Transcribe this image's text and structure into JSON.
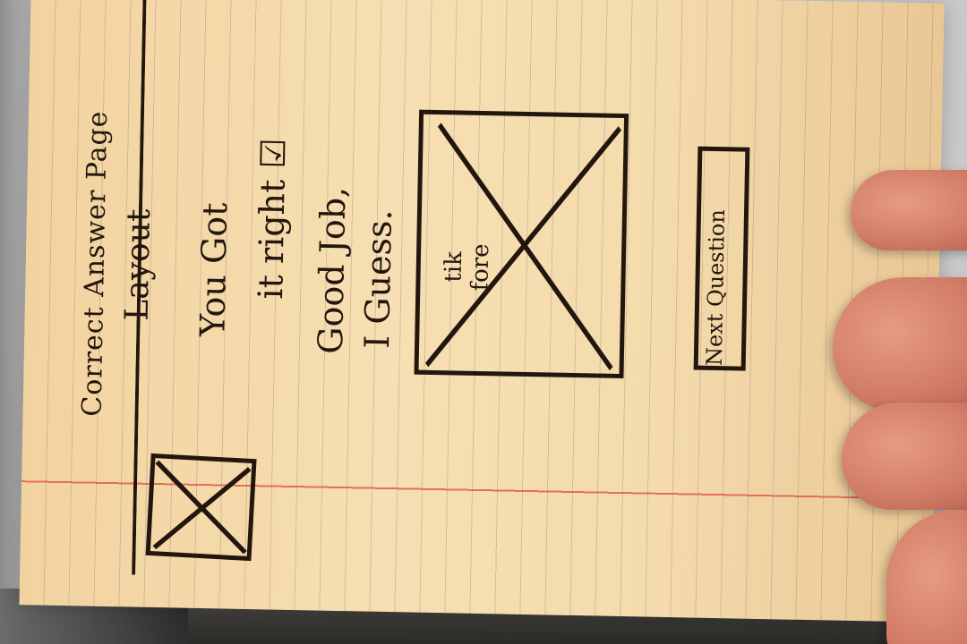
{
  "sketch": {
    "title_line_1": "Correct Answer Page",
    "title_line_2": "Layout",
    "message_lines": [
      "You Got",
      "it right ☑",
      "Good Job,",
      "I Guess."
    ],
    "image_placeholder_label": "tik fore",
    "next_button_label": "Next Question"
  },
  "colors": {
    "paper": "#f6dfb2",
    "ink": "#23160f",
    "margin_line": "#e25a4e",
    "skin": "#d27d67"
  }
}
